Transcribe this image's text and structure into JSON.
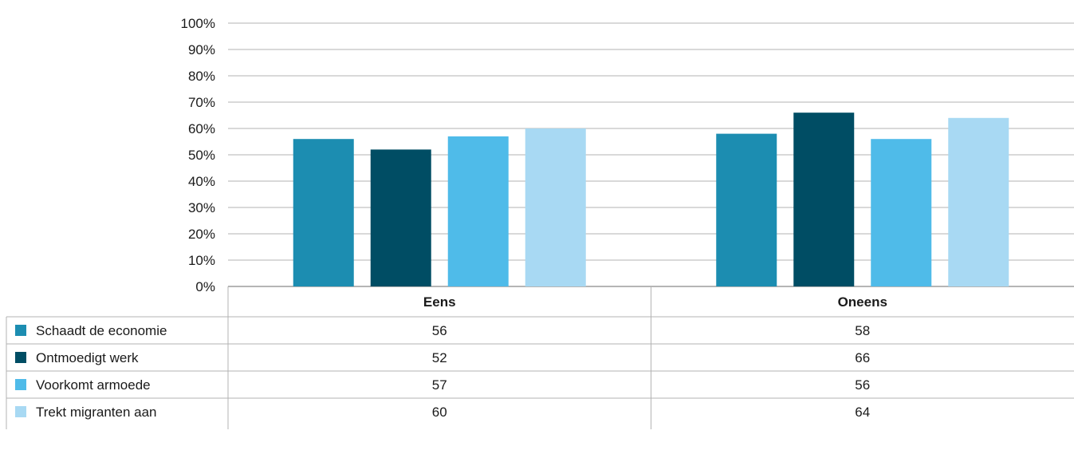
{
  "chart_data": {
    "type": "bar",
    "categories": [
      "Eens",
      "Oneens"
    ],
    "series": [
      {
        "name": "Schaadt de economie",
        "values": [
          56,
          58
        ],
        "color": "#1c8db1"
      },
      {
        "name": "Ontmoedigt werk",
        "values": [
          52,
          66
        ],
        "color": "#004d64"
      },
      {
        "name": "Voorkomt armoede",
        "values": [
          57,
          56
        ],
        "color": "#4fbbe9"
      },
      {
        "name": "Trekt migranten aan",
        "values": [
          60,
          64
        ],
        "color": "#a8d9f3"
      }
    ],
    "y_ticks": [
      "0%",
      "10%",
      "20%",
      "30%",
      "40%",
      "50%",
      "60%",
      "70%",
      "80%",
      "90%",
      "100%"
    ],
    "ylim": [
      0,
      100
    ],
    "grid": true,
    "legend": "data table below chart"
  }
}
